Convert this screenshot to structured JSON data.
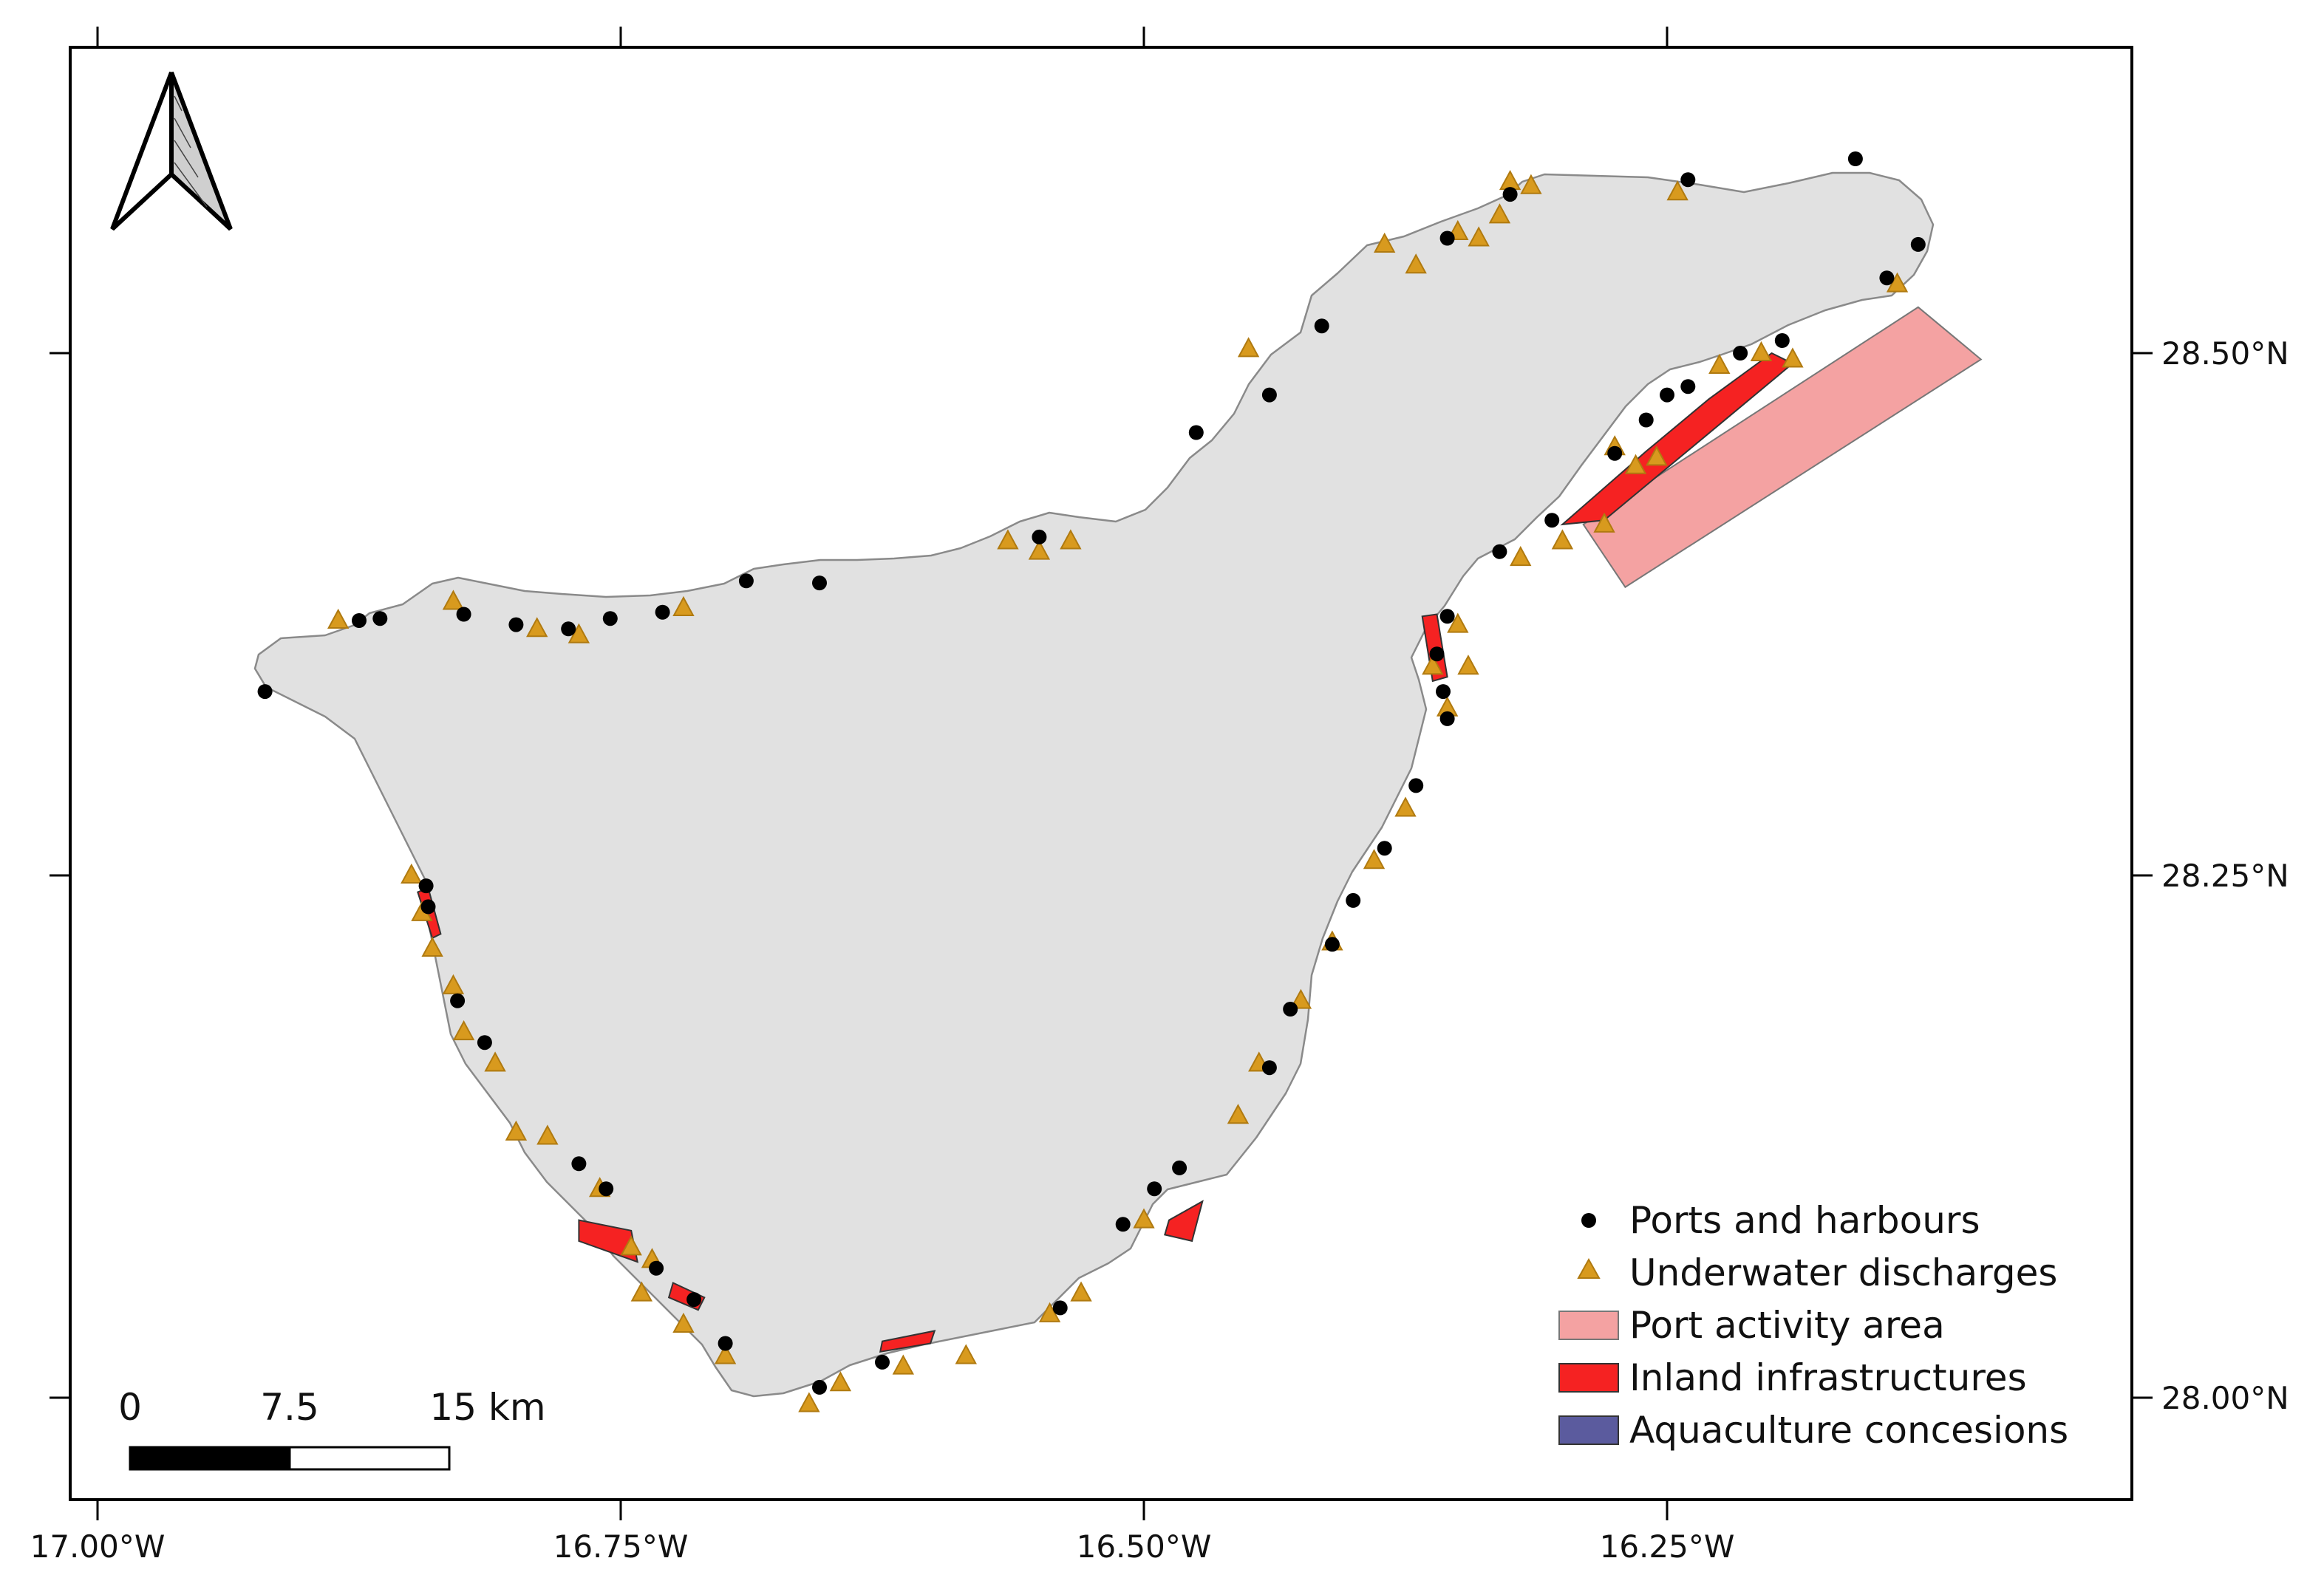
{
  "map": {
    "extent": {
      "lon_min": -17.0,
      "lon_max": -16.05,
      "lat_min": 27.95,
      "lat_max": 28.645
    },
    "x_ticks": [
      {
        "value": -17.0,
        "label": "17.00°W"
      },
      {
        "value": -16.75,
        "label": "16.75°W"
      },
      {
        "value": -16.5,
        "label": "16.50°W"
      },
      {
        "value": -16.25,
        "label": "16.25°W"
      }
    ],
    "y_ticks": [
      {
        "value": 28.5,
        "label": "28.50°N"
      },
      {
        "value": 28.25,
        "label": "28.25°N"
      },
      {
        "value": 28.0,
        "label": "28.00°N"
      }
    ],
    "colors": {
      "land": "#e1e1e1",
      "coast": "#8a8a8a",
      "port_area": "#f4a2a2",
      "inland": "#f52222",
      "aquaculture": "#5b5b9e",
      "discharge": "#d89a1e",
      "port": "#000000"
    },
    "port_activity_area": [
      [
        -16.29,
        28.418
      ],
      [
        -16.13,
        28.522
      ],
      [
        -16.1,
        28.497
      ],
      [
        -16.27,
        28.388
      ]
    ],
    "inland_infrastructures": [
      [
        [
          -16.3,
          28.418
        ],
        [
          -16.26,
          28.453
        ],
        [
          -16.23,
          28.478
        ],
        [
          -16.2,
          28.5
        ],
        [
          -16.19,
          28.495
        ],
        [
          -16.22,
          28.47
        ],
        [
          -16.25,
          28.445
        ],
        [
          -16.28,
          28.42
        ]
      ],
      [
        [
          -16.36,
          28.375
        ],
        [
          -16.355,
          28.345
        ],
        [
          -16.362,
          28.343
        ],
        [
          -16.367,
          28.374
        ]
      ],
      [
        [
          -16.77,
          28.085
        ],
        [
          -16.745,
          28.08
        ],
        [
          -16.742,
          28.065
        ],
        [
          -16.77,
          28.075
        ]
      ],
      [
        [
          -16.725,
          28.055
        ],
        [
          -16.71,
          28.048
        ],
        [
          -16.713,
          28.042
        ],
        [
          -16.727,
          28.048
        ]
      ],
      [
        [
          -16.488,
          28.085
        ],
        [
          -16.472,
          28.094
        ],
        [
          -16.477,
          28.075
        ],
        [
          -16.49,
          28.078
        ]
      ],
      [
        [
          -16.625,
          28.027
        ],
        [
          -16.6,
          28.032
        ],
        [
          -16.602,
          28.026
        ],
        [
          -16.626,
          28.022
        ]
      ],
      [
        [
          -16.847,
          28.242
        ],
        [
          -16.84,
          28.22
        ],
        [
          -16.836,
          28.222
        ],
        [
          -16.842,
          28.244
        ]
      ]
    ],
    "ports": [
      [
        -16.92,
        28.338
      ],
      [
        -16.875,
        28.372
      ],
      [
        -16.865,
        28.373
      ],
      [
        -16.825,
        28.375
      ],
      [
        -16.8,
        28.37
      ],
      [
        -16.775,
        28.368
      ],
      [
        -16.755,
        28.373
      ],
      [
        -16.73,
        28.376
      ],
      [
        -16.69,
        28.391
      ],
      [
        -16.655,
        28.39
      ],
      [
        -16.55,
        28.412
      ],
      [
        -16.475,
        28.462
      ],
      [
        -16.44,
        28.48
      ],
      [
        -16.415,
        28.513
      ],
      [
        -16.355,
        28.555
      ],
      [
        -16.325,
        28.576
      ],
      [
        -16.24,
        28.583
      ],
      [
        -16.16,
        28.593
      ],
      [
        -16.145,
        28.536
      ],
      [
        -16.13,
        28.552
      ],
      [
        -16.195,
        28.506
      ],
      [
        -16.215,
        28.5
      ],
      [
        -16.24,
        28.484
      ],
      [
        -16.25,
        28.48
      ],
      [
        -16.26,
        28.468
      ],
      [
        -16.275,
        28.452
      ],
      [
        -16.305,
        28.42
      ],
      [
        -16.33,
        28.405
      ],
      [
        -16.355,
        28.374
      ],
      [
        -16.36,
        28.356
      ],
      [
        -16.357,
        28.338
      ],
      [
        -16.355,
        28.325
      ],
      [
        -16.37,
        28.293
      ],
      [
        -16.385,
        28.263
      ],
      [
        -16.4,
        28.238
      ],
      [
        -16.41,
        28.217
      ],
      [
        -16.43,
        28.186
      ],
      [
        -16.44,
        28.158
      ],
      [
        -16.483,
        28.11
      ],
      [
        -16.495,
        28.1
      ],
      [
        -16.51,
        28.083
      ],
      [
        -16.54,
        28.043
      ],
      [
        -16.625,
        28.017
      ],
      [
        -16.655,
        28.005
      ],
      [
        -16.7,
        28.026
      ],
      [
        -16.715,
        28.047
      ],
      [
        -16.733,
        28.062
      ],
      [
        -16.757,
        28.1
      ],
      [
        -16.77,
        28.112
      ],
      [
        -16.815,
        28.17
      ],
      [
        -16.828,
        28.19
      ],
      [
        -16.842,
        28.235
      ],
      [
        -16.843,
        28.245
      ]
    ],
    "discharges": [
      [
        -16.885,
        28.372
      ],
      [
        -16.83,
        28.381
      ],
      [
        -16.79,
        28.368
      ],
      [
        -16.77,
        28.365
      ],
      [
        -16.72,
        28.378
      ],
      [
        -16.565,
        28.41
      ],
      [
        -16.55,
        28.405
      ],
      [
        -16.535,
        28.41
      ],
      [
        -16.45,
        28.502
      ],
      [
        -16.385,
        28.552
      ],
      [
        -16.37,
        28.542
      ],
      [
        -16.34,
        28.555
      ],
      [
        -16.33,
        28.566
      ],
      [
        -16.325,
        28.582
      ],
      [
        -16.315,
        28.58
      ],
      [
        -16.35,
        28.558
      ],
      [
        -16.245,
        28.577
      ],
      [
        -16.19,
        28.497
      ],
      [
        -16.225,
        28.494
      ],
      [
        -16.14,
        28.533
      ],
      [
        -16.205,
        28.5
      ],
      [
        -16.275,
        28.455
      ],
      [
        -16.265,
        28.446
      ],
      [
        -16.255,
        28.45
      ],
      [
        -16.32,
        28.402
      ],
      [
        -16.3,
        28.41
      ],
      [
        -16.28,
        28.418
      ],
      [
        -16.35,
        28.37
      ],
      [
        -16.345,
        28.35
      ],
      [
        -16.362,
        28.35
      ],
      [
        -16.355,
        28.33
      ],
      [
        -16.375,
        28.282
      ],
      [
        -16.39,
        28.257
      ],
      [
        -16.41,
        28.218
      ],
      [
        -16.425,
        28.19
      ],
      [
        -16.445,
        28.16
      ],
      [
        -16.455,
        28.135
      ],
      [
        -16.5,
        28.085
      ],
      [
        -16.53,
        28.05
      ],
      [
        -16.545,
        28.04
      ],
      [
        -16.585,
        28.02
      ],
      [
        -16.615,
        28.015
      ],
      [
        -16.645,
        28.007
      ],
      [
        -16.66,
        27.997
      ],
      [
        -16.7,
        28.02
      ],
      [
        -16.72,
        28.035
      ],
      [
        -16.74,
        28.05
      ],
      [
        -16.735,
        28.066
      ],
      [
        -16.745,
        28.072
      ],
      [
        -16.76,
        28.1
      ],
      [
        -16.785,
        28.125
      ],
      [
        -16.8,
        28.127
      ],
      [
        -16.81,
        28.16
      ],
      [
        -16.825,
        28.175
      ],
      [
        -16.83,
        28.197
      ],
      [
        -16.84,
        28.215
      ],
      [
        -16.845,
        28.232
      ],
      [
        -16.85,
        28.25
      ]
    ],
    "aquaculture": []
  },
  "legend": {
    "items": [
      {
        "label": "Ports and harbours",
        "symbol": "dot"
      },
      {
        "label": "Underwater discharges",
        "symbol": "triangle"
      },
      {
        "label": "Port activity area",
        "symbol": "rect-port"
      },
      {
        "label": "Inland infrastructures",
        "symbol": "rect-inland"
      },
      {
        "label": "Aquaculture concesions",
        "symbol": "rect-aqua"
      }
    ]
  },
  "scale_bar": {
    "labels": [
      "0",
      "7.5",
      "15 km"
    ]
  }
}
